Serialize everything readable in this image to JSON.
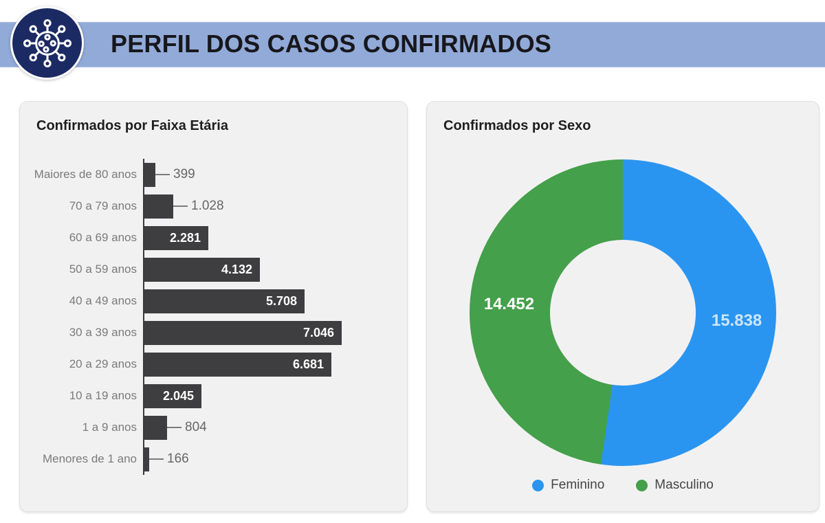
{
  "header": {
    "title": "PERFIL DOS CASOS CONFIRMADOS",
    "banner_color": "#92aad8",
    "badge_color": "#1b2a63",
    "icon": "virus-icon"
  },
  "chart_data": [
    {
      "type": "bar",
      "orientation": "horizontal",
      "title": "Confirmados por Faixa Etária",
      "categories": [
        "Maiores de 80 anos",
        "70 a 79 anos",
        "60 a 69 anos",
        "50 a 59 anos",
        "40 a 49 anos",
        "30 a 39 anos",
        "20 a 29 anos",
        "10 a 19 anos",
        "1 a 9 anos",
        "Menores de 1 ano"
      ],
      "values": [
        399,
        1028,
        2281,
        4132,
        5708,
        7046,
        6681,
        2045,
        804,
        166
      ],
      "value_labels": [
        "399",
        "1.028",
        "2.281",
        "4.132",
        "5.708",
        "7.046",
        "6.681",
        "2.045",
        "804",
        "166"
      ],
      "bar_color": "#3e3d3f",
      "xlim": [
        0,
        7046
      ],
      "grid": false,
      "legend_position": "none"
    },
    {
      "type": "donut",
      "title": "Confirmados por Sexo",
      "series": [
        {
          "name": "Feminino",
          "value": 15838,
          "label": "15.838",
          "color": "#2a95f0",
          "label_color": "#cde5fa"
        },
        {
          "name": "Masculino",
          "value": 14452,
          "label": "14.452",
          "color": "#44a04a",
          "label_color": "#ffffff"
        }
      ],
      "legend_position": "bottom"
    }
  ]
}
